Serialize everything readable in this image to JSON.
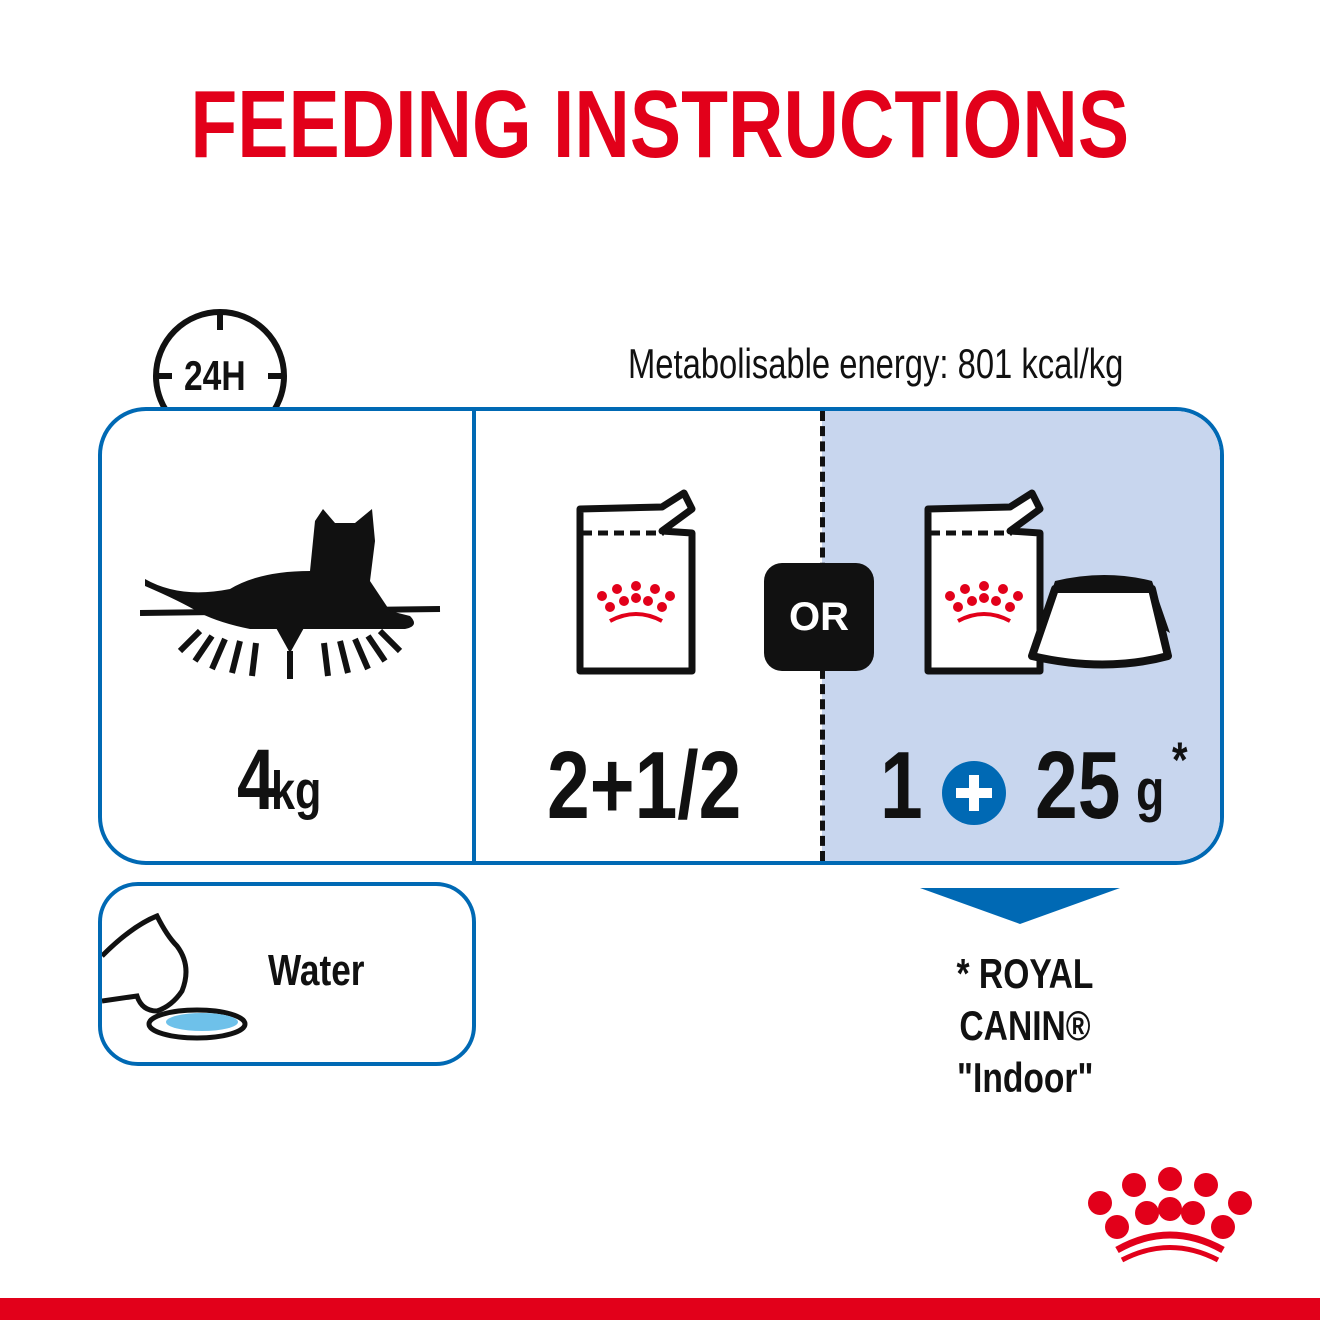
{
  "title": "FEEDING INSTRUCTIONS",
  "energy": "Metabolisable energy: 801 kcal/kg",
  "clock_label": "24H",
  "weight": {
    "value": "4",
    "unit": "kg"
  },
  "pouch_only": "2+1/2",
  "or_label": "OR",
  "mixed": {
    "pouch": "1",
    "dry": "25",
    "unit": "g",
    "asterisk": "*"
  },
  "water_label": "Water",
  "footnote": {
    "line1": "* ROYAL CANIN®",
    "line2": "\"Indoor\""
  },
  "colors": {
    "brand_red": "#e2001a",
    "blue": "#0069b4",
    "panel": "#c8d6ee"
  },
  "icons": [
    "clock-icon",
    "cat-icon",
    "pouch-icon",
    "crown-icon",
    "bowl-icon",
    "plus-icon",
    "water-bowl-icon",
    "royal-canin-logo"
  ]
}
